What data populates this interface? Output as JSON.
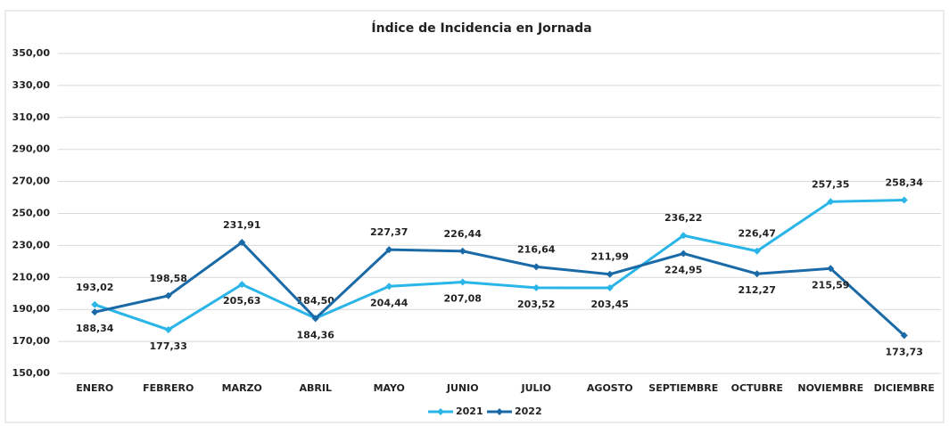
{
  "chart_data": {
    "type": "line",
    "title": "Índice de Incidencia en Jornada",
    "categories": [
      "ENERO",
      "FEBRERO",
      "MARZO",
      "ABRIL",
      "MAYO",
      "JUNIO",
      "JULIO",
      "AGOSTO",
      "SEPTIEMBRE",
      "OCTUBRE",
      "NOVIEMBRE",
      "DICIEMBRE"
    ],
    "series": [
      {
        "name": "2021",
        "color": "#29b5e8",
        "values": [
          193.02,
          177.33,
          205.63,
          184.5,
          204.44,
          207.08,
          203.52,
          203.45,
          236.22,
          226.47,
          257.35,
          258.34
        ],
        "value_labels": [
          "193,02",
          "177,33",
          "205,63",
          "184,50",
          "204,44",
          "207,08",
          "203,52",
          "203,45",
          "236,22",
          "226,47",
          "257,35",
          "258,34"
        ]
      },
      {
        "name": "2022",
        "color": "#1a6aa8",
        "values": [
          188.34,
          198.58,
          231.91,
          184.36,
          227.37,
          226.44,
          216.64,
          211.99,
          224.95,
          212.27,
          215.59,
          173.73
        ],
        "value_labels": [
          "188,34",
          "198,58",
          "231,91",
          "184,36",
          "227,37",
          "226,44",
          "216,64",
          "211,99",
          "224,95",
          "212,27",
          "215,59",
          "173,73"
        ]
      }
    ],
    "ylim": [
      150,
      350
    ],
    "yticks": [
      {
        "value": 150,
        "label": "150,00"
      },
      {
        "value": 170,
        "label": "170,00"
      },
      {
        "value": 190,
        "label": "190,00"
      },
      {
        "value": 210,
        "label": "210,00"
      },
      {
        "value": 230,
        "label": "230,00"
      },
      {
        "value": 250,
        "label": "250,00"
      },
      {
        "value": 270,
        "label": "270,00"
      },
      {
        "value": 290,
        "label": "290,00"
      },
      {
        "value": 310,
        "label": "310,00"
      },
      {
        "value": 330,
        "label": "330,00"
      },
      {
        "value": 350,
        "label": "350,00"
      }
    ],
    "grid": true,
    "legend": "bottom"
  }
}
